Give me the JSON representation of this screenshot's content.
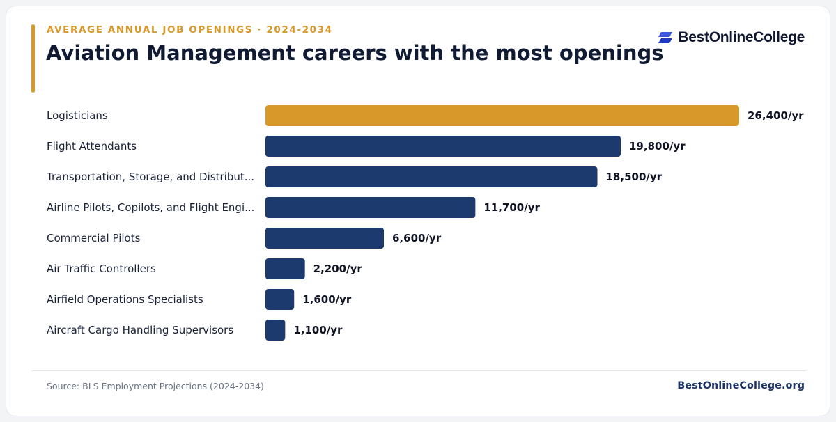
{
  "header": {
    "eyebrow": "AVERAGE ANNUAL JOB OPENINGS · 2024-2034",
    "title": "Aviation Management careers with the most openings",
    "brand": "BestOnlineCollege"
  },
  "colors": {
    "highlight": "#d9982a",
    "bar": "#1c3a6e",
    "title": "#101a33"
  },
  "chart_data": {
    "type": "bar",
    "orientation": "horizontal",
    "title": "Aviation Management careers with the most openings",
    "subtitle": "AVERAGE ANNUAL JOB OPENINGS · 2024-2034",
    "xlabel": "",
    "ylabel": "",
    "unit_suffix": "/yr",
    "xlim": [
      0,
      26400
    ],
    "grid": false,
    "legend": "none",
    "categories": [
      "Logisticians",
      "Flight Attendants",
      "Transportation, Storage, and Distribut...",
      "Airline Pilots, Copilots, and Flight Engi...",
      "Commercial Pilots",
      "Air Traffic Controllers",
      "Airfield Operations Specialists",
      "Aircraft Cargo Handling Supervisors"
    ],
    "values": [
      26400,
      19800,
      18500,
      11700,
      6600,
      2200,
      1600,
      1100
    ],
    "value_labels": [
      "26,400/yr",
      "19,800/yr",
      "18,500/yr",
      "11,700/yr",
      "6,600/yr",
      "2,200/yr",
      "1,600/yr",
      "1,100/yr"
    ],
    "highlighted_index": 0
  },
  "footer": {
    "source": "Source: BLS Employment Projections (2024-2034)",
    "site": "BestOnlineCollege.org"
  }
}
